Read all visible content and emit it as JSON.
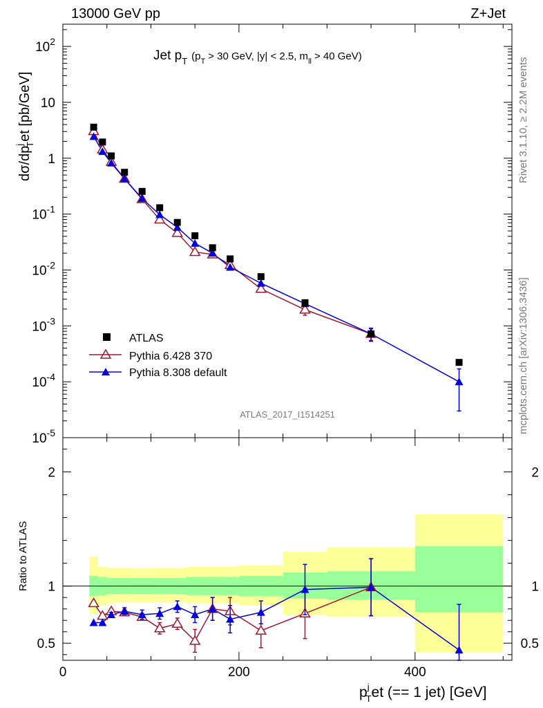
{
  "header": {
    "left": "13000 GeV pp",
    "right": "Z+Jet"
  },
  "side": {
    "top": "Rivet 3.1.10, ≥ 2.2M events",
    "bottom": "mcplots.cern.ch [arXiv:1306.3436]"
  },
  "watermark": "ATLAS_2017_I1514251",
  "plot_title": {
    "main": "Jet p",
    "main_sub": "T",
    "cut_p": "(p",
    "cut_p_sub": "T",
    "cut_rest": "> 30 GeV, |y| < 2.5, m",
    "cut_m_sub": "ll",
    "cut_tail": "> 40 GeV)"
  },
  "axis_labels": {
    "y_top": "dσ/dp",
    "y_top_sub": "T",
    "y_top_sup": "j",
    "y_top_tail": "et [pb/GeV]",
    "y_bottom": "Ratio to ATLAS",
    "x_main": "p",
    "x_sup": "j",
    "x_sub": "T",
    "x_tail": "et (== 1 jet) [GeV]"
  },
  "chart_data": [
    {
      "type": "scatter",
      "panel": "main",
      "yscale": "log",
      "xlim": [
        0,
        510
      ],
      "ylim": [
        1e-05,
        250
      ],
      "ytick_labels": [
        "10^-5",
        "10^-4",
        "10^-3",
        "10^-2",
        "10^-1",
        "1",
        "10",
        "10^2"
      ],
      "xtick_labels": [
        "0",
        "200",
        "400"
      ],
      "legend": {
        "placement": "bottom-left",
        "entries": [
          "ATLAS",
          "Pythia 6.428 370",
          "Pythia 8.308 default"
        ]
      },
      "colors": {
        "atlas": "#000000",
        "py6": "#a0162c",
        "py8": "#0000dd"
      },
      "series": [
        {
          "name": "ATLAS",
          "marker": "square",
          "x": [
            35,
            45,
            55,
            70,
            90,
            110,
            130,
            150,
            170,
            190,
            225,
            275,
            350,
            450
          ],
          "y": [
            3.6,
            1.95,
            1.1,
            0.56,
            0.255,
            0.13,
            0.071,
            0.041,
            0.025,
            0.0158,
            0.0076,
            0.0026,
            0.00072,
            0.000222
          ]
        },
        {
          "name": "Pythia 6.428 370",
          "marker": "open-triangle",
          "x": [
            35,
            45,
            55,
            70,
            90,
            110,
            130,
            150,
            170,
            190,
            225,
            275,
            350
          ],
          "y": [
            3.05,
            1.43,
            0.86,
            0.43,
            0.185,
            0.08,
            0.046,
            0.021,
            0.019,
            0.0123,
            0.0046,
            0.00195,
            0.00072
          ],
          "yerr": [
            0,
            0,
            0,
            0,
            0,
            0,
            0,
            0,
            0,
            0,
            0,
            0.0004,
            0.00017
          ]
        },
        {
          "name": "Pythia 8.308 default",
          "marker": "filled-triangle",
          "x": [
            35,
            45,
            55,
            70,
            90,
            110,
            130,
            150,
            170,
            190,
            225,
            275,
            350,
            450
          ],
          "y": [
            2.45,
            1.32,
            0.82,
            0.43,
            0.19,
            0.098,
            0.058,
            0.03,
            0.02,
            0.0112,
            0.0058,
            0.0025,
            0.00072,
            0.0001
          ],
          "yerr": [
            0,
            0,
            0,
            0,
            0,
            0,
            0,
            0,
            0,
            0,
            0,
            0,
            0.00019,
            7e-05
          ]
        }
      ]
    },
    {
      "type": "line",
      "panel": "ratio",
      "ylabel": "Ratio to ATLAS",
      "xlim": [
        0,
        510
      ],
      "ylim": [
        0.35,
        2.3
      ],
      "ytick_labels": [
        "0.5",
        "1",
        "2"
      ],
      "bands": {
        "edges": [
          30,
          40,
          50,
          60,
          80,
          100,
          120,
          140,
          160,
          180,
          200,
          250,
          300,
          400,
          500
        ],
        "green_lo": [
          0.91,
          0.92,
          0.93,
          0.93,
          0.93,
          0.93,
          0.93,
          0.92,
          0.92,
          0.92,
          0.91,
          0.89,
          0.88,
          0.77
        ],
        "green_hi": [
          1.09,
          1.08,
          1.07,
          1.07,
          1.07,
          1.07,
          1.07,
          1.08,
          1.08,
          1.08,
          1.09,
          1.12,
          1.13,
          1.35
        ],
        "yellow_lo": [
          0.76,
          0.83,
          0.85,
          0.86,
          0.86,
          0.86,
          0.86,
          0.85,
          0.85,
          0.85,
          0.83,
          0.75,
          0.73,
          0.42
        ],
        "yellow_hi": [
          1.26,
          1.17,
          1.16,
          1.16,
          1.16,
          1.16,
          1.16,
          1.17,
          1.17,
          1.17,
          1.18,
          1.3,
          1.34,
          1.63
        ]
      },
      "series": [
        {
          "name": "Pythia 6.428 370",
          "x": [
            35,
            45,
            55,
            70,
            90,
            110,
            130,
            150,
            170,
            190,
            225,
            275,
            350
          ],
          "y": [
            0.85,
            0.74,
            0.78,
            0.77,
            0.73,
            0.63,
            0.67,
            0.52,
            0.8,
            0.78,
            0.61,
            0.76,
            0.99
          ],
          "yerr": [
            0,
            0.02,
            0.02,
            0.02,
            0.03,
            0.05,
            0.05,
            0.1,
            0.1,
            0.12,
            0.15,
            0.22,
            0.25
          ]
        },
        {
          "name": "Pythia 8.308 default",
          "x": [
            35,
            45,
            55,
            70,
            90,
            110,
            130,
            150,
            170,
            190,
            225,
            275,
            350,
            450
          ],
          "y": [
            0.68,
            0.68,
            0.75,
            0.78,
            0.75,
            0.76,
            0.82,
            0.75,
            0.8,
            0.71,
            0.77,
            0.97,
            0.99,
            0.44
          ],
          "yerr": [
            0,
            0,
            0.02,
            0.03,
            0.04,
            0.05,
            0.05,
            0.07,
            0.1,
            0.12,
            0.1,
            0.22,
            0.25,
            0.4
          ]
        }
      ]
    }
  ]
}
